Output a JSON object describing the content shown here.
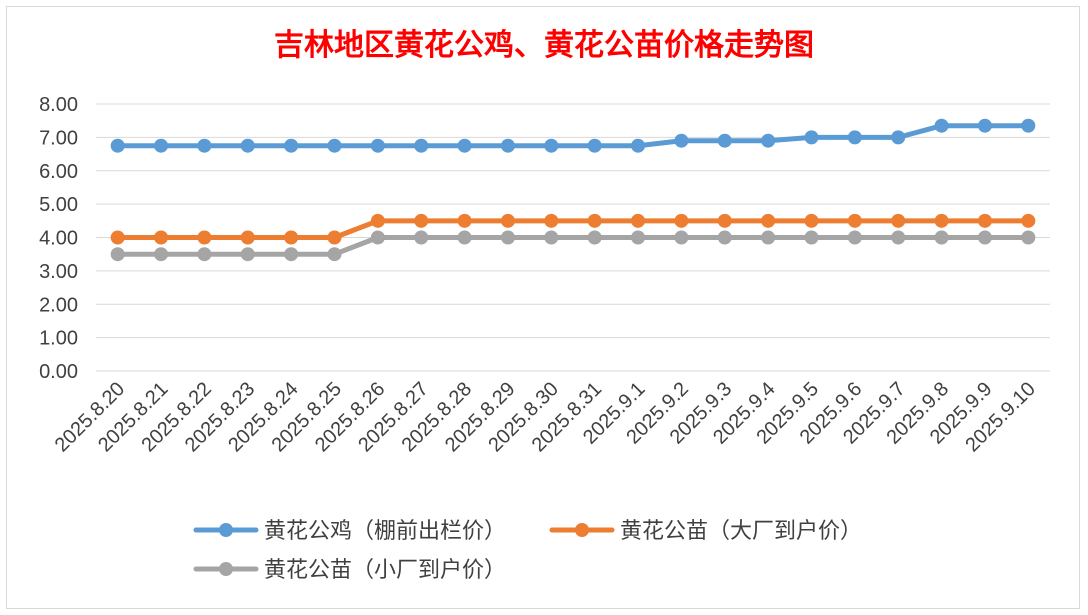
{
  "chart_data": {
    "type": "line",
    "title": "吉林地区黄花公鸡、黄花公苗价格走势图",
    "xlabel": "",
    "ylabel": "",
    "ylim": [
      0,
      8
    ],
    "yticks": [
      "0.00",
      "1.00",
      "2.00",
      "3.00",
      "4.00",
      "5.00",
      "6.00",
      "7.00",
      "8.00"
    ],
    "grid": true,
    "legend_position": "bottom",
    "categories": [
      "2025.8.20",
      "2025.8.21",
      "2025.8.22",
      "2025.8.23",
      "2025.8.24",
      "2025.8.25",
      "2025.8.26",
      "2025.8.27",
      "2025.8.28",
      "2025.8.29",
      "2025.8.30",
      "2025.8.31",
      "2025.9.1",
      "2025.9.2",
      "2025.9.3",
      "2025.9.4",
      "2025.9.5",
      "2025.9.6",
      "2025.9.7",
      "2025.9.8",
      "2025.9.9",
      "2025.9.10"
    ],
    "series": [
      {
        "name": "黄花公鸡（棚前出栏价）",
        "color": "#5b9bd5",
        "values": [
          6.75,
          6.75,
          6.75,
          6.75,
          6.75,
          6.75,
          6.75,
          6.75,
          6.75,
          6.75,
          6.75,
          6.75,
          6.75,
          6.9,
          6.9,
          6.9,
          7.0,
          7.0,
          7.0,
          7.35,
          7.35,
          7.35
        ]
      },
      {
        "name": "黄花公苗（大厂到户价）",
        "color": "#ed7d31",
        "values": [
          4.0,
          4.0,
          4.0,
          4.0,
          4.0,
          4.0,
          4.5,
          4.5,
          4.5,
          4.5,
          4.5,
          4.5,
          4.5,
          4.5,
          4.5,
          4.5,
          4.5,
          4.5,
          4.5,
          4.5,
          4.5,
          4.5
        ]
      },
      {
        "name": "黄花公苗（小厂到户价）",
        "color": "#a5a5a5",
        "values": [
          3.5,
          3.5,
          3.5,
          3.5,
          3.5,
          3.5,
          4.0,
          4.0,
          4.0,
          4.0,
          4.0,
          4.0,
          4.0,
          4.0,
          4.0,
          4.0,
          4.0,
          4.0,
          4.0,
          4.0,
          4.0,
          4.0
        ]
      }
    ]
  }
}
